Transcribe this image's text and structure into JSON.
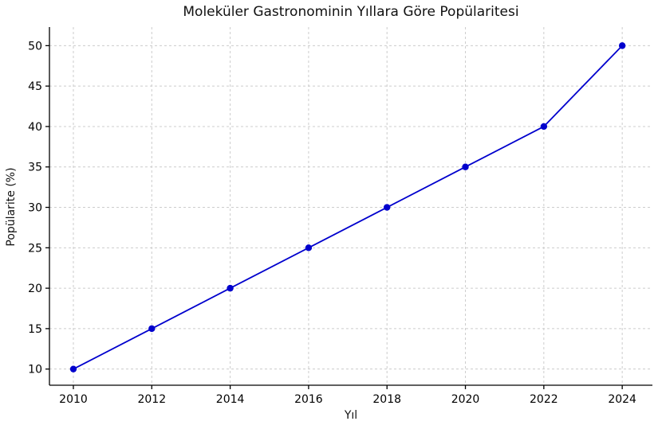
{
  "figure": {
    "background": "#ffffff"
  },
  "chart_data": {
    "type": "line",
    "title": "Moleküler Gastronominin Yıllara Göre Popülaritesi",
    "xlabel": "Yıl",
    "ylabel": "Popülarite (%)",
    "x": [
      2010,
      2012,
      2014,
      2016,
      2018,
      2020,
      2022,
      2024
    ],
    "series": [
      {
        "name": "Popülarite",
        "values": [
          10,
          15,
          20,
          25,
          30,
          35,
          40,
          50
        ]
      }
    ],
    "xtick_labels": [
      "2010",
      "2012",
      "2014",
      "2016",
      "2018",
      "2020",
      "2022",
      "2024"
    ],
    "xtick_values": [
      2010,
      2012,
      2014,
      2016,
      2018,
      2020,
      2022,
      2024
    ],
    "ytick_labels": [
      "10",
      "15",
      "20",
      "25",
      "30",
      "35",
      "40",
      "45",
      "50"
    ],
    "ytick_values": [
      10,
      15,
      20,
      25,
      30,
      35,
      40,
      45,
      50
    ],
    "xlim": [
      2009.39,
      2024.77
    ],
    "ylim": [
      8.0,
      52.3
    ],
    "grid": true,
    "grid_style": "dashed",
    "legend": "none",
    "marker": "circle",
    "colors": {
      "line": "#0000CD",
      "marker": "#0000CD",
      "grid": "#cccccc",
      "axis": "#000000",
      "text": "#000000"
    }
  }
}
